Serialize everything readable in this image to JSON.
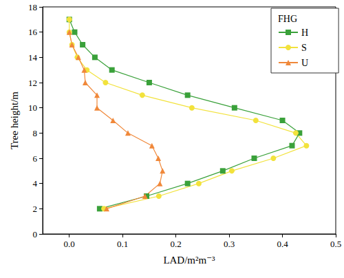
{
  "chart_data": {
    "type": "line",
    "legend_title": "FHG",
    "x_label": "LAD/m²m⁻³",
    "y_label": "Tree height/m",
    "xlim": [
      -0.05,
      0.5
    ],
    "xticks": [
      {
        "value": 0,
        "label": "0.0"
      },
      0.1,
      0.2,
      0.3,
      0.4,
      0.5
    ],
    "ylim": [
      0,
      18
    ],
    "yticks": [
      0,
      2,
      4,
      6,
      8,
      10,
      12,
      14,
      16,
      18
    ],
    "grid": false,
    "legend": "top-right",
    "series": [
      {
        "name": "H",
        "color": "#3aa13a",
        "marker": "square",
        "x": [
          0.057,
          0.145,
          0.222,
          0.288,
          0.347,
          0.418,
          0.432,
          0.4,
          0.31,
          0.222,
          0.15,
          0.08,
          0.048,
          0.025,
          0.01,
          0.0
        ],
        "values": [
          2,
          3,
          4,
          5,
          6,
          7,
          8,
          9,
          10,
          11,
          12,
          13,
          14,
          15,
          16,
          17
        ]
      },
      {
        "name": "S",
        "color": "#f2e23c",
        "marker": "circle",
        "x": [
          0.065,
          0.168,
          0.243,
          0.305,
          0.383,
          0.445,
          0.425,
          0.35,
          0.23,
          0.137,
          0.068,
          0.033,
          0.015,
          0.005,
          0.0,
          0.0
        ],
        "values": [
          2,
          3,
          4,
          5,
          6,
          7,
          8,
          9,
          10,
          11,
          12,
          13,
          14,
          15,
          16,
          17
        ]
      },
      {
        "name": "U",
        "color": "#f0883a",
        "marker": "triangle",
        "x": [
          0.07,
          0.142,
          0.17,
          0.175,
          0.167,
          0.155,
          0.11,
          0.082,
          0.052,
          0.052,
          0.03,
          0.028,
          0.017,
          0.005,
          0.0
        ],
        "values": [
          2,
          3,
          4,
          5,
          6,
          7,
          8,
          9,
          10,
          11,
          12,
          13,
          14,
          15,
          16
        ]
      }
    ]
  }
}
